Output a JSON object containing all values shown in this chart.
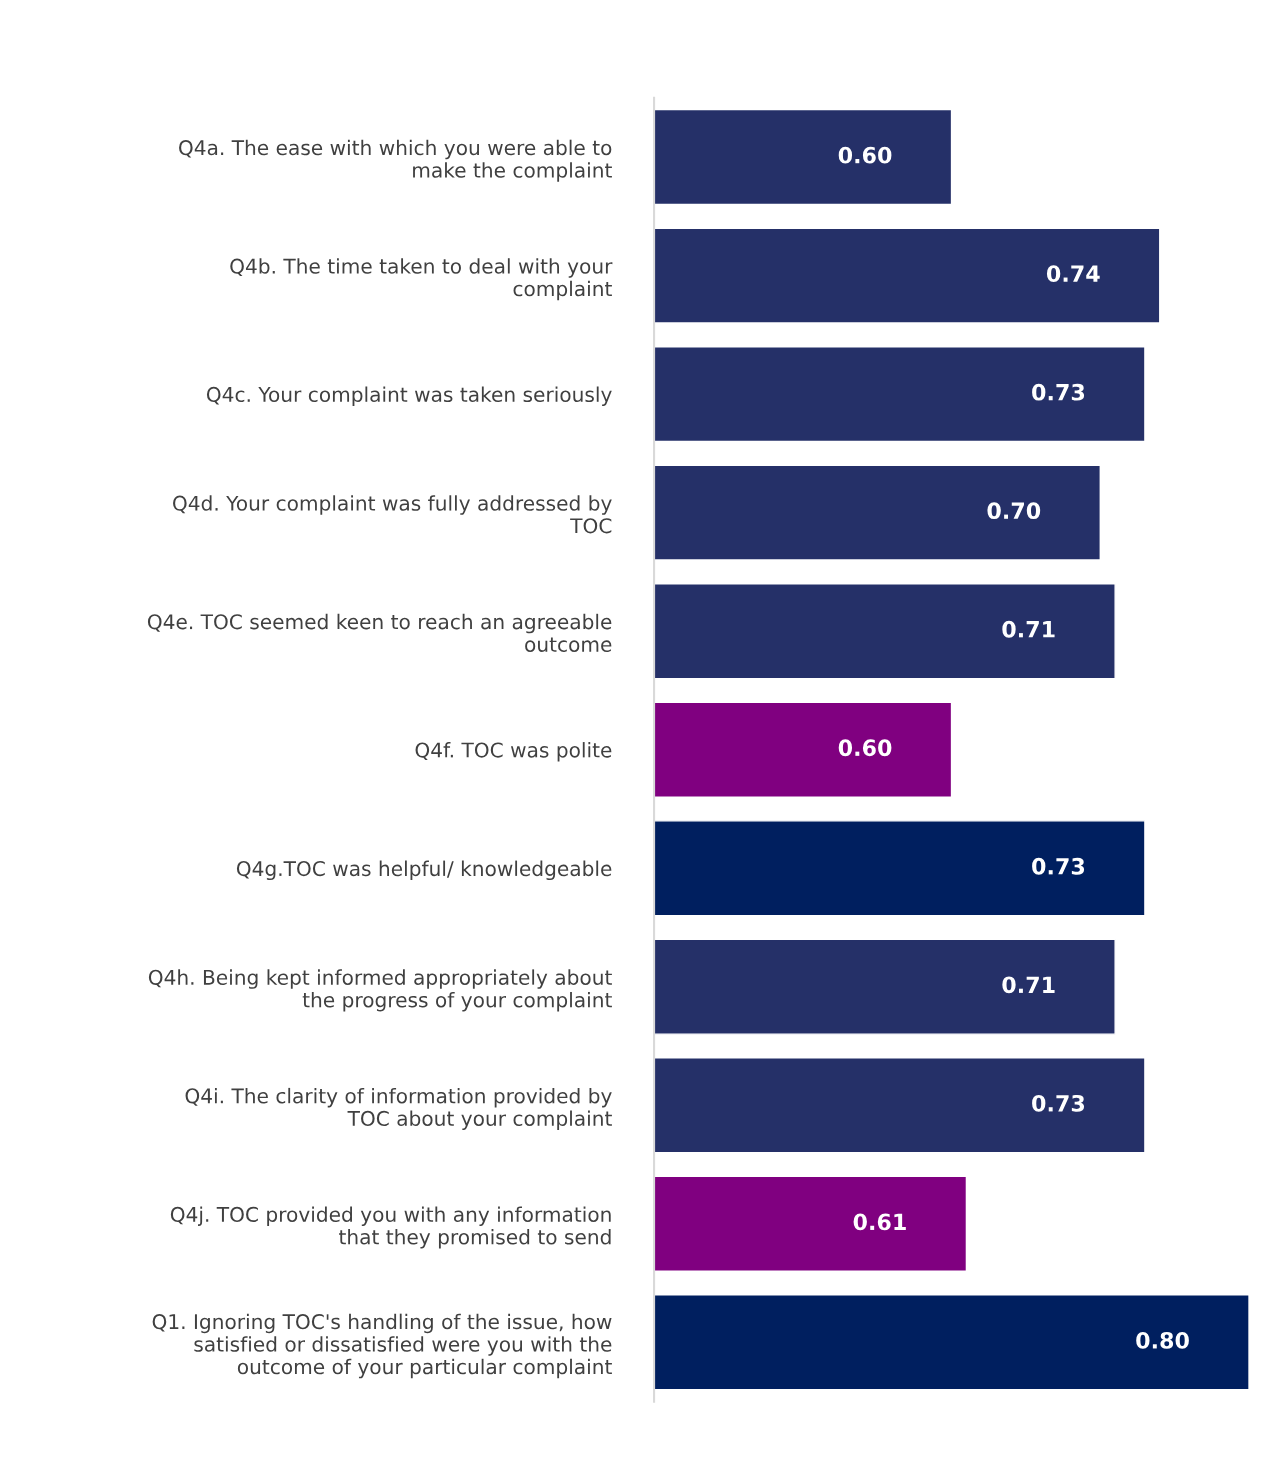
{
  "chart_data": {
    "type": "bar",
    "orientation": "horizontal",
    "categories": [
      "Q4a. The ease with which you were able to\nmake the complaint",
      "Q4b. The time taken to deal with your\ncomplaint",
      "Q4c. Your complaint was taken seriously",
      "Q4d. Your complaint was fully addressed by\nTOC",
      "Q4e. TOC seemed keen to reach an agreeable\noutcome",
      "Q4f. TOC was polite",
      "Q4g.TOC was helpful/ knowledgeable",
      "Q4h. Being kept informed appropriately about\nthe progress of your complaint",
      "Q4i. The clarity of information provided by\nTOC about your complaint",
      "Q4j. TOC provided you with any information\nthat they promised to send",
      "Q1. Ignoring TOC's handling of the issue, how\nsatisfied or dissatisfied were you with the\noutcome of your particular complaint"
    ],
    "values": [
      0.6,
      0.74,
      0.73,
      0.7,
      0.71,
      0.6,
      0.73,
      0.71,
      0.73,
      0.61,
      0.8
    ],
    "value_labels": [
      "0.60",
      "0.74",
      "0.73",
      "0.70",
      "0.71",
      "0.60",
      "0.73",
      "0.71",
      "0.73",
      "0.61",
      "0.80"
    ],
    "colors": [
      "#253068",
      "#253068",
      "#253068",
      "#253068",
      "#253068",
      "#800080",
      "#001f5f",
      "#253068",
      "#253068",
      "#800080",
      "#001f5f"
    ],
    "xlim": [
      0.4,
      0.8
    ],
    "tick_labels": "y",
    "grid": false,
    "legend": false
  }
}
